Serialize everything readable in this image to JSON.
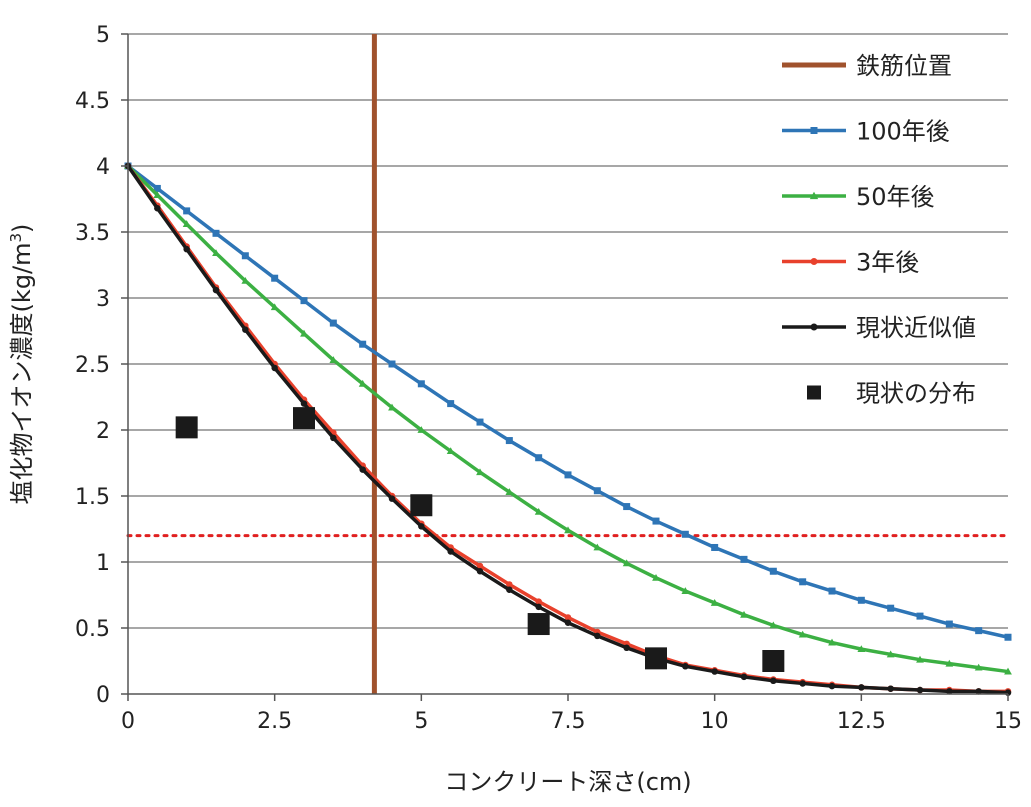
{
  "chart_data": {
    "type": "line",
    "xlabel": "コンクリート深さ(cm)",
    "ylabel_main": "塩化物イオン濃度(kg/m",
    "ylabel_sup": "3",
    "ylabel_close": ")",
    "xlim": [
      0,
      15
    ],
    "ylim": [
      0,
      5
    ],
    "x_ticks": [
      "0",
      "2.5",
      "5",
      "7.5",
      "10",
      "12.5",
      "15"
    ],
    "y_ticks": [
      "0",
      "0.5",
      "1",
      "1.5",
      "2",
      "2.5",
      "3",
      "3.5",
      "4",
      "4.5",
      "5"
    ],
    "grid": "horizontal",
    "legend_position": "right",
    "rebar_position": {
      "name": "鉄筋位置",
      "x": 4.2,
      "color": "#a0522d"
    },
    "threshold_line": {
      "y": 1.2,
      "color": "#e02020",
      "style": "dotted"
    },
    "x": [
      0,
      0.5,
      1,
      1.5,
      2,
      2.5,
      3,
      3.5,
      4,
      4.5,
      5,
      5.5,
      6,
      6.5,
      7,
      7.5,
      8,
      8.5,
      9,
      9.5,
      10,
      10.5,
      11,
      11.5,
      12,
      12.5,
      13,
      13.5,
      14,
      14.5,
      15
    ],
    "series": [
      {
        "name": "100年後",
        "color": "#2e75b6",
        "marker": "square",
        "values": [
          4.0,
          3.83,
          3.66,
          3.49,
          3.32,
          3.15,
          2.98,
          2.81,
          2.65,
          2.5,
          2.35,
          2.2,
          2.06,
          1.92,
          1.79,
          1.66,
          1.54,
          1.42,
          1.31,
          1.21,
          1.11,
          1.02,
          0.93,
          0.85,
          0.78,
          0.71,
          0.65,
          0.59,
          0.53,
          0.48,
          0.43
        ]
      },
      {
        "name": "50年後",
        "color": "#3cb043",
        "marker": "triangle",
        "values": [
          4.0,
          3.78,
          3.56,
          3.34,
          3.13,
          2.93,
          2.73,
          2.53,
          2.35,
          2.17,
          2.0,
          1.84,
          1.68,
          1.53,
          1.38,
          1.24,
          1.11,
          0.99,
          0.88,
          0.78,
          0.69,
          0.6,
          0.52,
          0.45,
          0.39,
          0.34,
          0.3,
          0.26,
          0.23,
          0.2,
          0.17
        ]
      },
      {
        "name": "3年後",
        "color": "#e8412c",
        "marker": "circle",
        "values": [
          4.0,
          3.7,
          3.39,
          3.08,
          2.79,
          2.5,
          2.23,
          1.98,
          1.73,
          1.5,
          1.29,
          1.11,
          0.97,
          0.83,
          0.7,
          0.58,
          0.47,
          0.38,
          0.29,
          0.22,
          0.18,
          0.14,
          0.11,
          0.09,
          0.07,
          0.05,
          0.04,
          0.03,
          0.03,
          0.02,
          0.02
        ]
      },
      {
        "name": "現状近似値",
        "color": "#1a1a1a",
        "marker": "circle",
        "values": [
          4.0,
          3.68,
          3.37,
          3.06,
          2.76,
          2.47,
          2.2,
          1.94,
          1.7,
          1.48,
          1.27,
          1.08,
          0.93,
          0.79,
          0.66,
          0.54,
          0.44,
          0.35,
          0.27,
          0.21,
          0.17,
          0.13,
          0.1,
          0.08,
          0.06,
          0.05,
          0.04,
          0.03,
          0.02,
          0.02,
          0.01
        ]
      }
    ],
    "scatter": {
      "name": "現状の分布",
      "color": "#1a1a1a",
      "marker": "square",
      "points": [
        {
          "x": 1,
          "y": 2.02
        },
        {
          "x": 3,
          "y": 2.09
        },
        {
          "x": 5,
          "y": 1.43
        },
        {
          "x": 7,
          "y": 0.53
        },
        {
          "x": 9,
          "y": 0.27
        },
        {
          "x": 11,
          "y": 0.25
        }
      ]
    },
    "legend": [
      "鉄筋位置",
      "100年後",
      "50年後",
      "3年後",
      "現状近似値",
      "現状の分布"
    ]
  }
}
